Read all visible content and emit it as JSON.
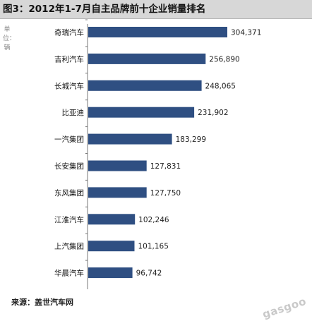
{
  "chart_data": {
    "type": "bar",
    "orientation": "horizontal",
    "title": "图3：2012年1-7月自主品牌前十企业销量排名",
    "unit": "单位：辆",
    "categories": [
      "奇瑞汽车",
      "吉利汽车",
      "长城汽车",
      "比亚迪",
      "一汽集团",
      "长安集团",
      "东风集团",
      "江淮汽车",
      "上汽集团",
      "华晨汽车"
    ],
    "values": [
      304371,
      256890,
      248065,
      231902,
      183299,
      127831,
      127750,
      102246,
      101165,
      96742
    ],
    "value_labels": [
      "304,371",
      "256,890",
      "248,065",
      "231,902",
      "183,299",
      "127,831",
      "127,750",
      "102,246",
      "101,165",
      "96,742"
    ],
    "bar_color": "#2f4f82",
    "grid": false,
    "legend": "none"
  },
  "source": "来源：盖世汽车网",
  "watermark": "gasgoo"
}
